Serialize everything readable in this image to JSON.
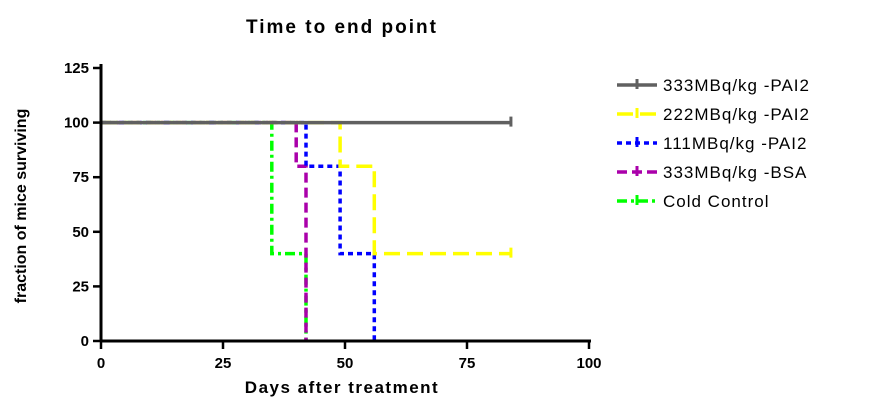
{
  "chart_data": {
    "type": "line",
    "subtype": "kaplan-meier step survival curve",
    "title": "Time to end point",
    "xlabel": "Days after treatment",
    "ylabel": "fraction of mice surviving",
    "xlim": [
      0,
      100
    ],
    "ylim": [
      0,
      125
    ],
    "xticks": [
      0,
      25,
      50,
      75,
      100
    ],
    "yticks": [
      0,
      25,
      50,
      75,
      100,
      125
    ],
    "grid": false,
    "legend_position": "right",
    "series": [
      {
        "name": "333MBq/kg -PAI2",
        "color": "#606060",
        "dash": "solid",
        "x": [
          0,
          84
        ],
        "y": [
          100,
          100
        ],
        "censor": [
          [
            84,
            100
          ]
        ]
      },
      {
        "name": "222MBq/kg -PAI2",
        "color": "#ffff00",
        "dash": "long-dash",
        "x": [
          0,
          49,
          49,
          56,
          56,
          84
        ],
        "y": [
          100,
          100,
          80,
          80,
          40,
          40
        ],
        "censor": [
          [
            84,
            40
          ]
        ]
      },
      {
        "name": "111MBq/kg -PAI2",
        "color": "#0000ff",
        "dash": "dot",
        "x": [
          0,
          42,
          42,
          49,
          49,
          56,
          56
        ],
        "y": [
          100,
          100,
          80,
          80,
          40,
          40,
          0
        ],
        "censor": []
      },
      {
        "name": "333MBq/kg -BSA",
        "color": "#aa00aa",
        "dash": "dash",
        "x": [
          0,
          40,
          40,
          42,
          42
        ],
        "y": [
          100,
          100,
          80,
          80,
          0
        ],
        "censor": []
      },
      {
        "name": "Cold Control",
        "color": "#00ff00",
        "dash": "dash-dot",
        "x": [
          0,
          35,
          35,
          42,
          42
        ],
        "y": [
          100,
          100,
          40,
          40,
          0
        ],
        "censor": []
      }
    ]
  }
}
